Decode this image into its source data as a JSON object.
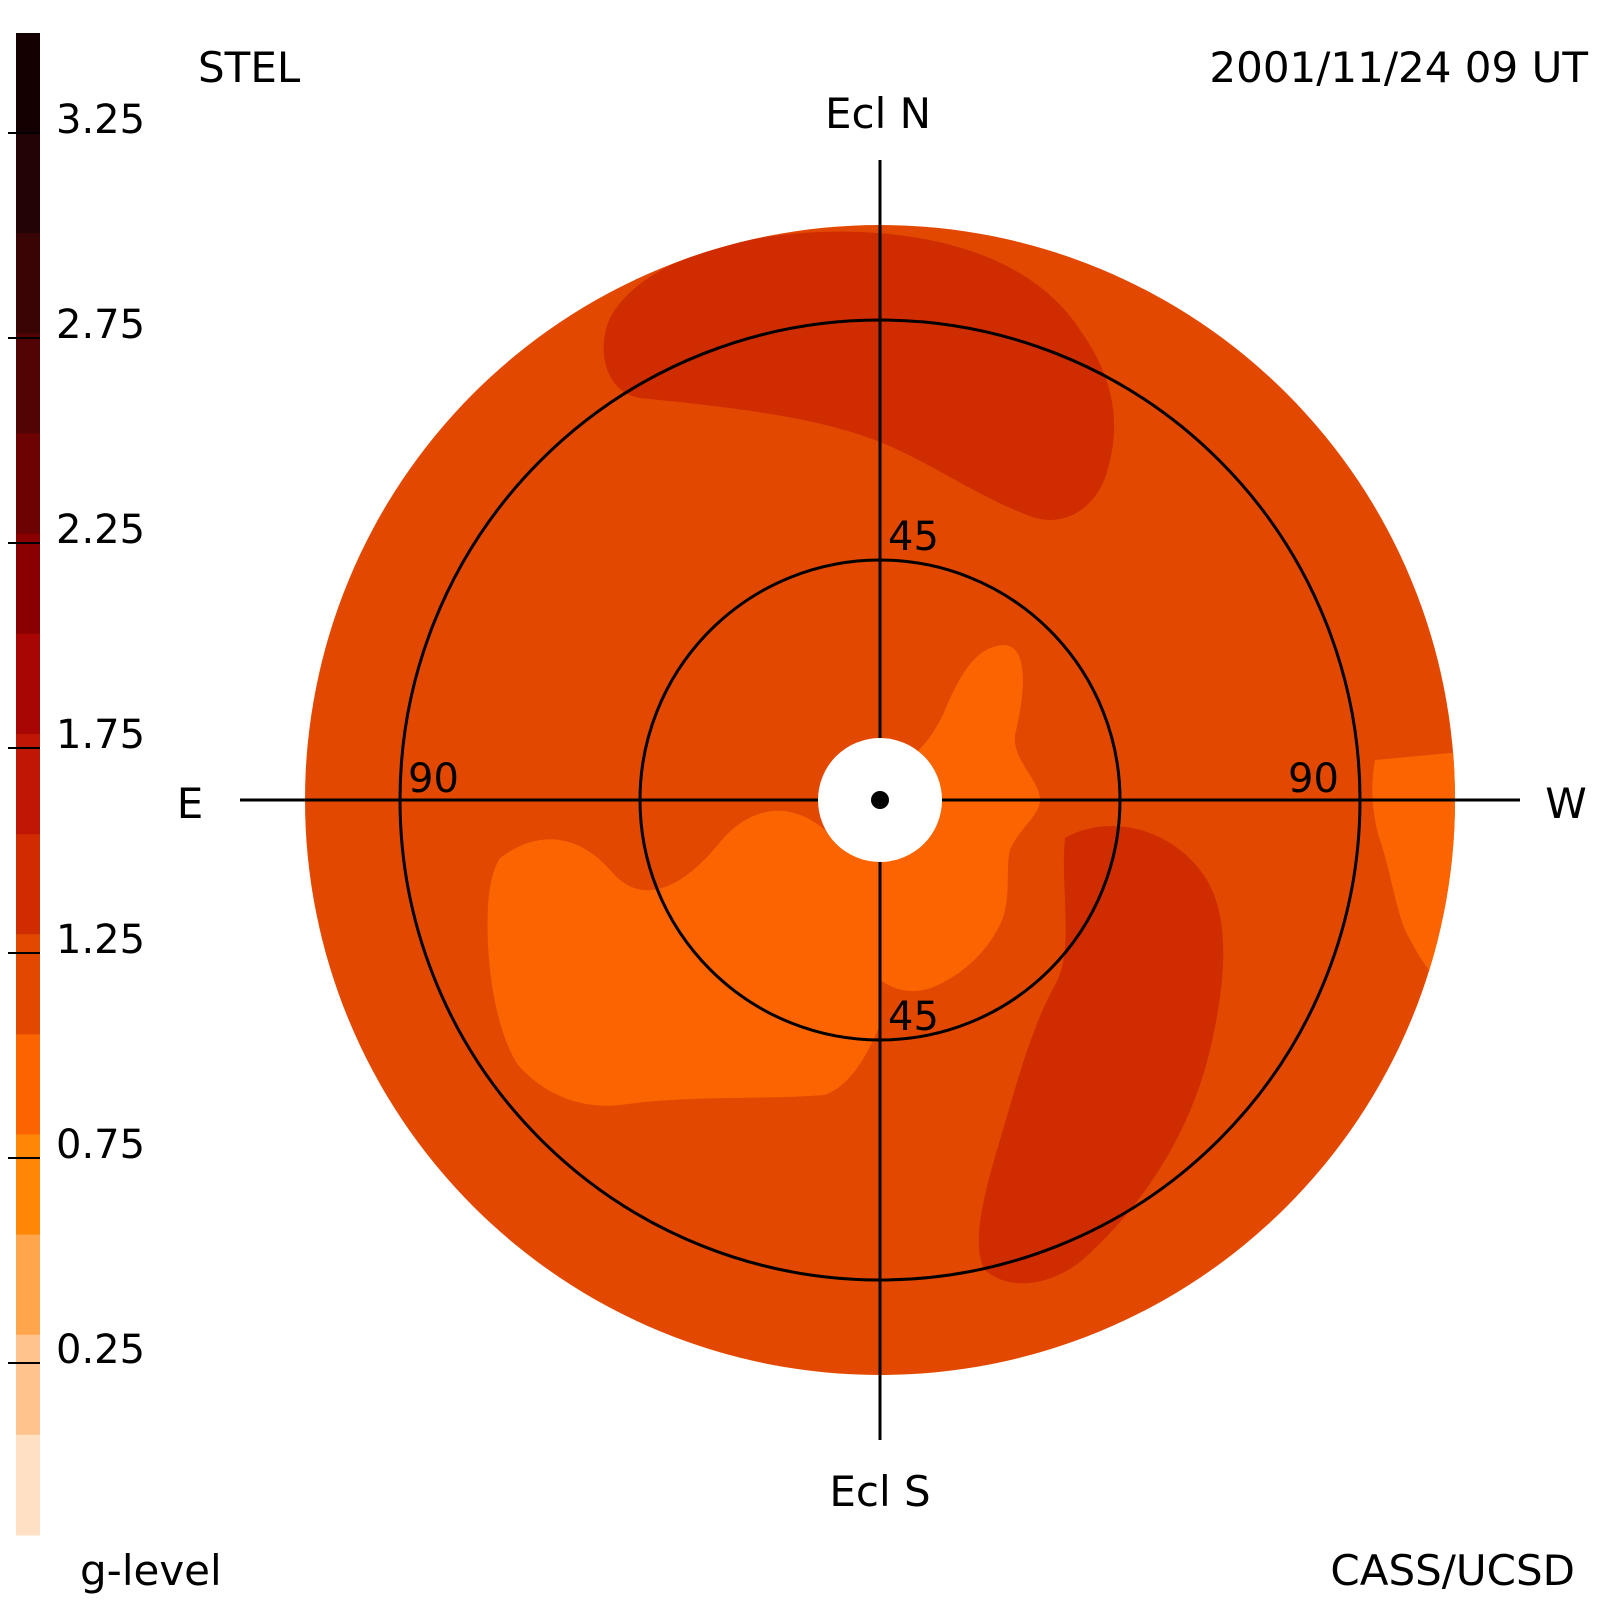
{
  "header": {
    "instrument": "STEL",
    "timestamp": "2001/11/24 09 UT",
    "credit": "CASS/UCSD"
  },
  "colorbar": {
    "label": "g-level",
    "ticks": [
      "3.25",
      "2.75",
      "2.25",
      "1.75",
      "1.25",
      "0.75",
      "0.25"
    ],
    "bands": [
      {
        "range": [
          3.25,
          3.5
        ],
        "color": "#140000"
      },
      {
        "range": [
          3.0,
          3.25
        ],
        "color": "#230303"
      },
      {
        "range": [
          2.75,
          3.0
        ],
        "color": "#3a0404"
      },
      {
        "range": [
          2.5,
          2.75
        ],
        "color": "#520303"
      },
      {
        "range": [
          2.25,
          2.5
        ],
        "color": "#6c0202"
      },
      {
        "range": [
          2.0,
          2.25
        ],
        "color": "#8a0000"
      },
      {
        "range": [
          1.75,
          2.0
        ],
        "color": "#a80505"
      },
      {
        "range": [
          1.5,
          1.75
        ],
        "color": "#bf1705"
      },
      {
        "range": [
          1.25,
          1.5
        ],
        "color": "#cf2c00"
      },
      {
        "range": [
          1.0,
          1.25
        ],
        "color": "#e24800"
      },
      {
        "range": [
          0.75,
          1.0
        ],
        "color": "#fb6400"
      },
      {
        "range": [
          0.5,
          0.75
        ],
        "color": "#ff8705"
      },
      {
        "range": [
          0.25,
          0.5
        ],
        "color": "#ffa64c"
      },
      {
        "range": [
          0.0,
          0.25
        ],
        "color": "#ffc48e"
      },
      {
        "range": [
          -0.25,
          0.0
        ],
        "color": "#ffe0c5"
      }
    ]
  },
  "map": {
    "directions": {
      "north": "Ecl N",
      "south": "Ecl S",
      "east": "E",
      "west": "W"
    },
    "rings": [
      {
        "elongation": 45,
        "labels": [
          "45",
          "45"
        ]
      },
      {
        "elongation": 90,
        "labels": [
          "90",
          "90"
        ]
      }
    ],
    "region_colors": {
      "background_level": "#e24800",
      "high_level": "#cf2c00",
      "low_level": "#fb6400",
      "sun_mask": "#ffffff"
    }
  }
}
